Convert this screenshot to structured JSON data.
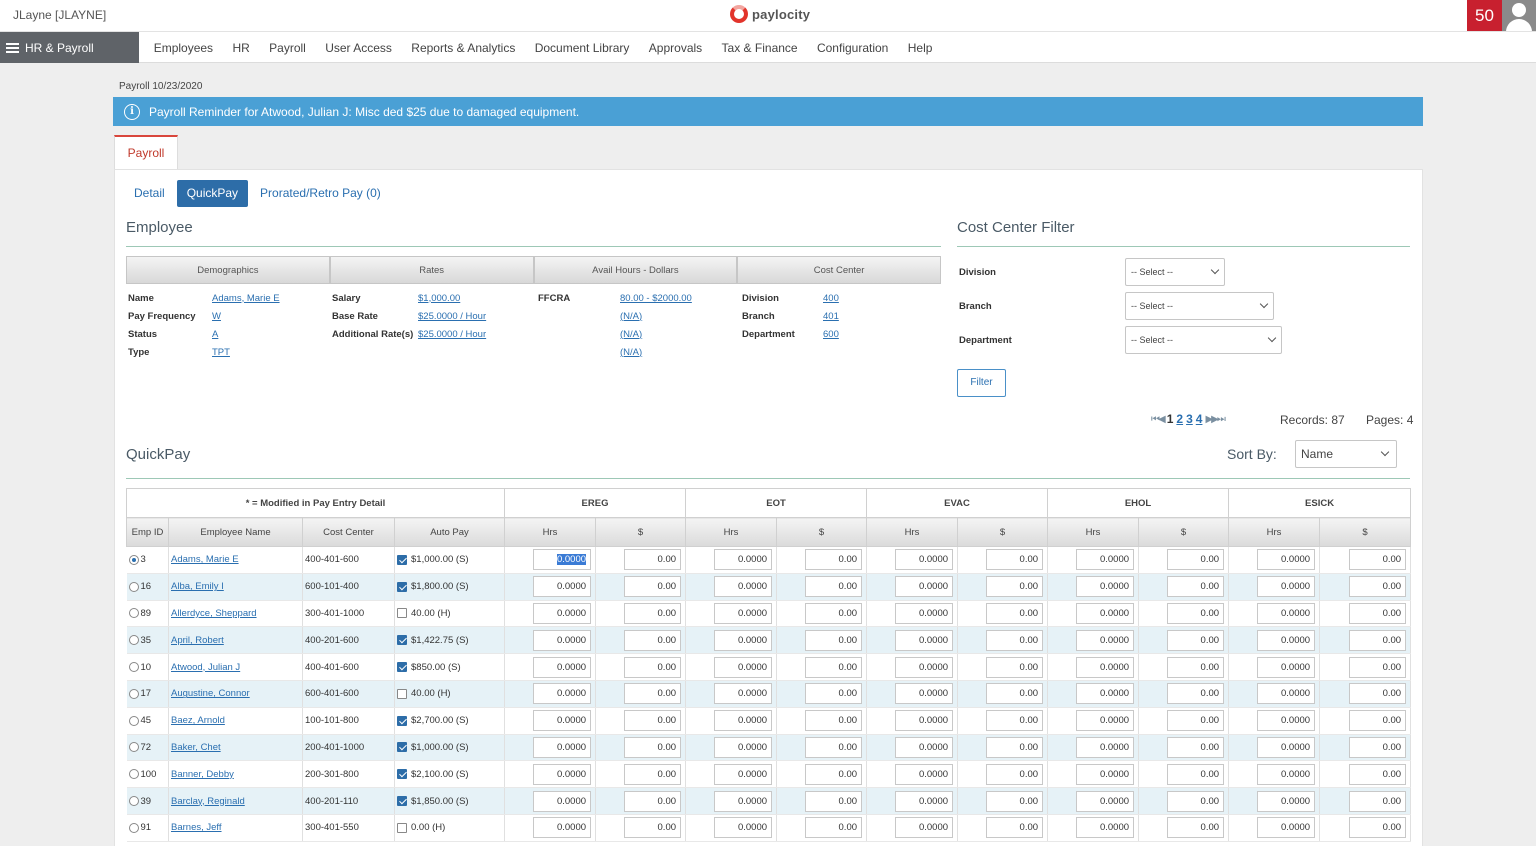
{
  "header": {
    "user": "JLayne [JLAYNE]",
    "logo_text": "paylocity",
    "notification_count": "50"
  },
  "nav": {
    "menu_label": "HR & Payroll",
    "items": [
      "Employees",
      "HR",
      "Payroll",
      "User Access",
      "Reports & Analytics",
      "Document Library",
      "Approvals",
      "Tax & Finance",
      "Configuration",
      "Help"
    ]
  },
  "page": {
    "breadcrumb": "Payroll 10/23/2020",
    "alert": "Payroll Reminder for Atwood, Julian J: Misc ded $25 due to damaged equipment.",
    "main_tab": "Payroll",
    "subtabs": [
      "Detail",
      "QuickPay",
      "Prorated/Retro Pay (0)"
    ],
    "active_subtab": "QuickPay"
  },
  "employee": {
    "title": "Employee",
    "headers": [
      "Demographics",
      "Rates",
      "Avail Hours - Dollars",
      "Cost Center"
    ],
    "demographics": [
      {
        "label": "Name",
        "value": "Adams, Marie E"
      },
      {
        "label": "Pay Frequency",
        "value": "W"
      },
      {
        "label": "Status",
        "value": "A"
      },
      {
        "label": "Type",
        "value": "TPT"
      }
    ],
    "rates": [
      {
        "label": "Salary",
        "value": "$1,000.00"
      },
      {
        "label": "Base Rate",
        "value": "$25.0000 / Hour"
      },
      {
        "label": "Additional Rate(s)",
        "value": "$25.0000 / Hour"
      }
    ],
    "avail": [
      {
        "label": "FFCRA",
        "value": "80.00 - $2000.00"
      },
      {
        "label": "",
        "value": "(N/A)"
      },
      {
        "label": "",
        "value": "(N/A)"
      },
      {
        "label": "",
        "value": "(N/A)"
      }
    ],
    "cost_center": [
      {
        "label": "Division",
        "value": "400"
      },
      {
        "label": "Branch",
        "value": "401"
      },
      {
        "label": "Department",
        "value": "600"
      }
    ]
  },
  "filter": {
    "title": "Cost Center Filter",
    "fields": [
      {
        "label": "Division",
        "value": "-- Select --"
      },
      {
        "label": "Branch",
        "value": "-- Select --"
      },
      {
        "label": "Department",
        "value": "-- Select --"
      }
    ],
    "button": "Filter"
  },
  "pager": {
    "pages": [
      "1",
      "2",
      "3",
      "4"
    ],
    "current": "1",
    "records": "Records: 87",
    "page_count": "Pages: 4"
  },
  "quickpay": {
    "title": "QuickPay",
    "sort_label": "Sort By:",
    "sort_value": "Name",
    "modified_note": "* = Modified in Pay Entry Detail",
    "groups": [
      "EREG",
      "EOT",
      "EVAC",
      "EHOL",
      "ESICK"
    ],
    "columns": [
      "Emp ID",
      "Employee Name",
      "Cost Center",
      "Auto Pay"
    ],
    "hrs_label": "Hrs",
    "amt_label": "$",
    "hrs_value": "0.0000",
    "amt_value": "0.00",
    "rows": [
      {
        "id": "3",
        "name": "Adams, Marie E",
        "cc": "400-401-600",
        "checked": true,
        "auto": "$1,000.00 (S)",
        "selected": true
      },
      {
        "id": "16",
        "name": "Alba, Emily I",
        "cc": "600-101-400",
        "checked": true,
        "auto": "$1,800.00 (S)"
      },
      {
        "id": "89",
        "name": "Allerdyce, Sheppard",
        "cc": "300-401-1000",
        "checked": false,
        "auto": "40.00 (H)"
      },
      {
        "id": "35",
        "name": "April, Robert",
        "cc": "400-201-600",
        "checked": true,
        "auto": "$1,422.75 (S)"
      },
      {
        "id": "10",
        "name": "Atwood, Julian J",
        "cc": "400-401-600",
        "checked": true,
        "auto": "$850.00 (S)"
      },
      {
        "id": "17",
        "name": "Augustine, Connor",
        "cc": "600-401-600",
        "checked": false,
        "auto": "40.00 (H)"
      },
      {
        "id": "45",
        "name": "Baez, Arnold",
        "cc": "100-101-800",
        "checked": true,
        "auto": "$2,700.00 (S)"
      },
      {
        "id": "72",
        "name": "Baker, Chet",
        "cc": "200-401-1000",
        "checked": true,
        "auto": "$1,000.00 (S)"
      },
      {
        "id": "100",
        "name": "Banner, Debby",
        "cc": "200-301-800",
        "checked": true,
        "auto": "$2,100.00 (S)"
      },
      {
        "id": "39",
        "name": "Barclay, Reginald",
        "cc": "400-201-110",
        "checked": true,
        "auto": "$1,850.00 (S)"
      },
      {
        "id": "91",
        "name": "Barnes, Jeff",
        "cc": "300-401-550",
        "checked": false,
        "auto": "0.00 (H)"
      }
    ]
  }
}
